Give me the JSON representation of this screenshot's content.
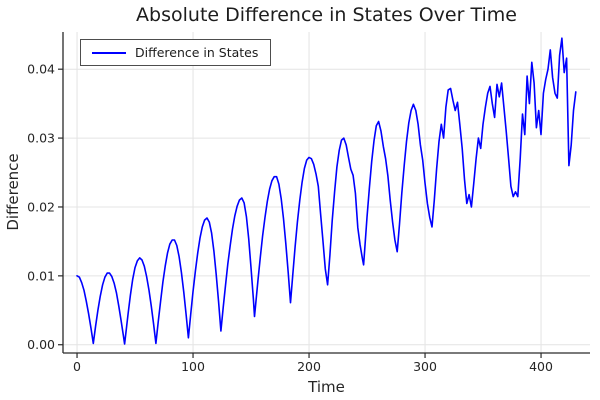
{
  "figure": {
    "title": "Absolute Difference in States Over Time"
  },
  "colors": {
    "line": "#0000ff",
    "grid": "#e4e4e4",
    "axis": "#2a2a2a",
    "tick_text": "#262626"
  },
  "chart_data": {
    "type": "line",
    "title": "Absolute Difference in States Over Time",
    "xlabel": "Time",
    "ylabel": "Difference",
    "grid": true,
    "legend_position": "top-left",
    "xlim": [
      -12.1,
      442.2
    ],
    "ylim": [
      -0.0012,
      0.0454
    ],
    "x_ticks": {
      "values": [
        0,
        100,
        200,
        300,
        400
      ],
      "labels": [
        "0",
        "100",
        "200",
        "300",
        "400"
      ]
    },
    "y_ticks": {
      "values": [
        0,
        0.01,
        0.02,
        0.03,
        0.04
      ],
      "labels": [
        "0.00",
        "0.01",
        "0.02",
        "0.03",
        "0.04"
      ]
    },
    "series": [
      {
        "name": "Difference in States",
        "color": "#0000ff",
        "x": [
          0,
          2,
          4,
          6,
          8,
          10,
          12,
          14,
          16,
          18,
          20,
          22,
          24,
          26,
          28,
          30,
          32,
          34,
          36,
          38,
          40,
          41,
          42,
          44,
          46,
          48,
          50,
          52,
          54,
          56,
          58,
          60,
          62,
          64,
          66,
          68,
          70,
          72,
          74,
          76,
          78,
          80,
          82,
          84,
          86,
          88,
          90,
          92,
          94,
          96,
          98,
          100,
          102,
          104,
          106,
          108,
          110,
          112,
          114,
          116,
          118,
          120,
          122,
          124,
          126,
          128,
          130,
          132,
          134,
          136,
          138,
          140,
          142,
          144,
          146,
          148,
          150,
          152,
          153,
          154,
          156,
          158,
          160,
          162,
          164,
          166,
          168,
          170,
          172,
          174,
          176,
          178,
          180,
          182,
          184,
          186,
          188,
          190,
          192,
          194,
          196,
          198,
          200,
          202,
          204,
          206,
          208,
          210,
          212,
          214,
          216,
          218,
          220,
          222,
          224,
          226,
          228,
          230,
          232,
          234,
          236,
          238,
          240,
          242,
          244,
          246,
          247,
          248,
          250,
          252,
          254,
          256,
          258,
          260,
          262,
          264,
          266,
          268,
          270,
          272,
          274,
          276,
          278,
          280,
          282,
          284,
          286,
          288,
          290,
          292,
          294,
          296,
          298,
          300,
          302,
          304,
          306,
          308,
          310,
          312,
          314,
          316,
          318,
          320,
          322,
          324,
          326,
          328,
          330,
          332,
          334,
          336,
          338,
          340,
          342,
          344,
          346,
          348,
          350,
          352,
          354,
          356,
          358,
          360,
          362,
          364,
          366,
          368,
          370,
          372,
          374,
          376,
          378,
          380,
          382,
          384,
          386,
          388,
          390,
          392,
          394,
          396,
          398,
          400,
          402,
          404,
          406,
          408,
          410,
          412,
          414,
          416,
          418,
          420,
          422,
          424,
          426,
          428,
          430
        ],
        "y": [
          0.01,
          0.0098,
          0.009,
          0.0079,
          0.0063,
          0.0045,
          0.0024,
          0.0002,
          0.0027,
          0.005,
          0.007,
          0.0087,
          0.0098,
          0.0104,
          0.0104,
          0.0099,
          0.0089,
          0.0075,
          0.0056,
          0.0035,
          0.0013,
          0.0001,
          0.0016,
          0.0045,
          0.0072,
          0.0095,
          0.0112,
          0.0122,
          0.0126,
          0.0123,
          0.0114,
          0.0099,
          0.0079,
          0.0056,
          0.003,
          0.0002,
          0.0033,
          0.0063,
          0.0091,
          0.0114,
          0.0133,
          0.0146,
          0.0152,
          0.0152,
          0.0144,
          0.0128,
          0.0105,
          0.0076,
          0.0044,
          0.001,
          0.0044,
          0.0077,
          0.0107,
          0.0133,
          0.0155,
          0.0171,
          0.0181,
          0.0184,
          0.0178,
          0.0162,
          0.0136,
          0.0102,
          0.0062,
          0.002,
          0.0054,
          0.0086,
          0.0117,
          0.0144,
          0.0168,
          0.0187,
          0.0201,
          0.021,
          0.0213,
          0.0206,
          0.0186,
          0.0154,
          0.0112,
          0.0066,
          0.0041,
          0.0059,
          0.0094,
          0.0127,
          0.0158,
          0.0185,
          0.0208,
          0.0226,
          0.0238,
          0.0244,
          0.0244,
          0.0233,
          0.0212,
          0.0183,
          0.0147,
          0.0105,
          0.0061,
          0.0102,
          0.0142,
          0.0178,
          0.021,
          0.0236,
          0.0256,
          0.0268,
          0.0272,
          0.027,
          0.0262,
          0.0248,
          0.023,
          0.019,
          0.015,
          0.011,
          0.0087,
          0.013,
          0.018,
          0.0222,
          0.0258,
          0.0282,
          0.0297,
          0.03,
          0.029,
          0.0272,
          0.0255,
          0.0246,
          0.022,
          0.017,
          0.0145,
          0.0125,
          0.0116,
          0.0138,
          0.0185,
          0.0228,
          0.0266,
          0.0296,
          0.0318,
          0.0324,
          0.031,
          0.0288,
          0.027,
          0.0245,
          0.021,
          0.0178,
          0.0152,
          0.0135,
          0.0175,
          0.022,
          0.026,
          0.0295,
          0.0322,
          0.034,
          0.0349,
          0.034,
          0.032,
          0.029,
          0.0268,
          0.0235,
          0.0205,
          0.0185,
          0.0171,
          0.021,
          0.0255,
          0.0295,
          0.032,
          0.03,
          0.0345,
          0.037,
          0.0372,
          0.0355,
          0.034,
          0.0352,
          0.032,
          0.0285,
          0.024,
          0.0205,
          0.0218,
          0.02,
          0.0235,
          0.027,
          0.03,
          0.0285,
          0.032,
          0.0345,
          0.0365,
          0.0375,
          0.035,
          0.033,
          0.0378,
          0.036,
          0.038,
          0.0345,
          0.031,
          0.027,
          0.023,
          0.0215,
          0.0222,
          0.0215,
          0.027,
          0.0335,
          0.0305,
          0.039,
          0.035,
          0.041,
          0.038,
          0.0315,
          0.034,
          0.0305,
          0.0365,
          0.0385,
          0.04,
          0.0428,
          0.0388,
          0.0365,
          0.0358,
          0.042,
          0.0445,
          0.0395,
          0.0416,
          0.026,
          0.029,
          0.034,
          0.0367
        ]
      }
    ]
  }
}
